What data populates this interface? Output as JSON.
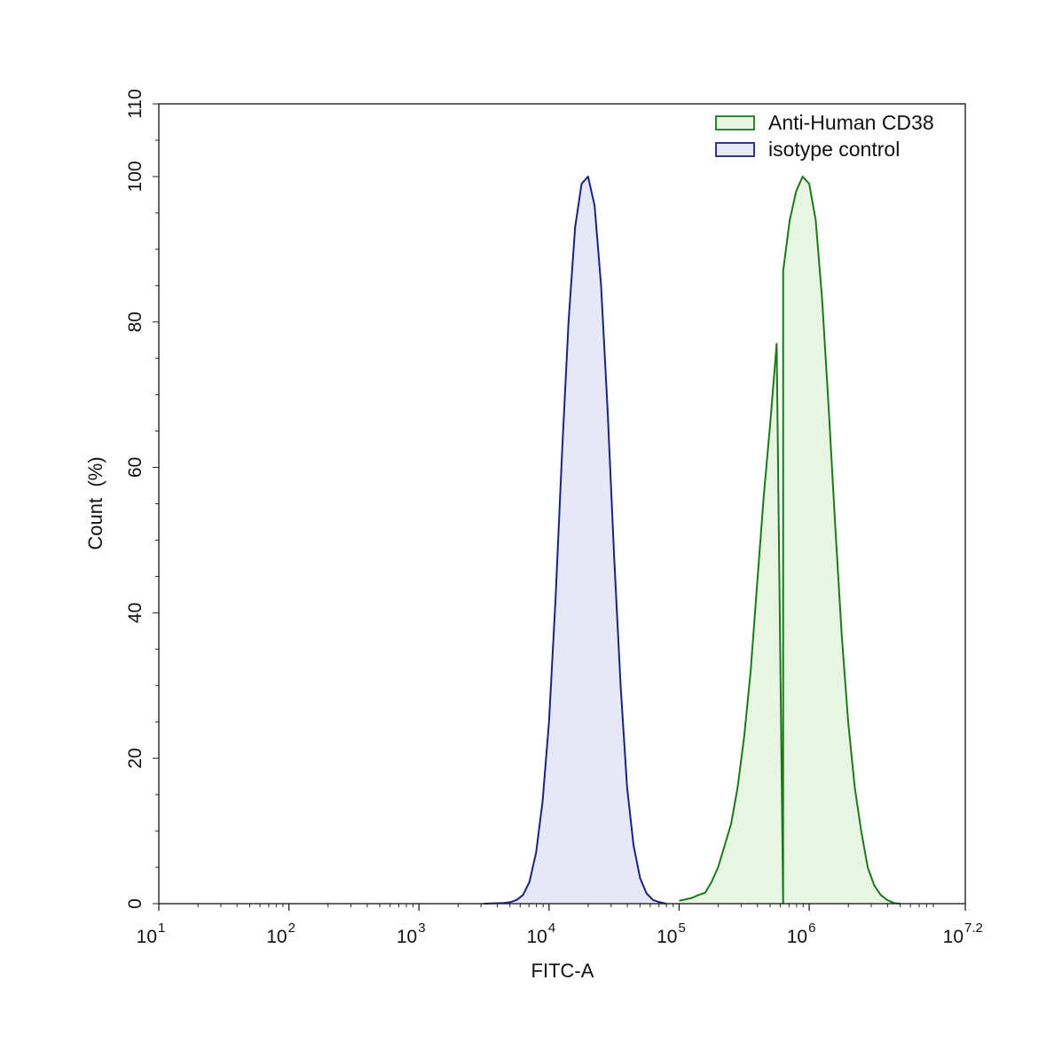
{
  "chart_data": {
    "type": "area",
    "xlabel": "FITC-A",
    "ylabel": "Count  (%)",
    "xscale": "log10",
    "xlim": [
      1,
      7.2
    ],
    "ylim": [
      0,
      110
    ],
    "x_ticks": [
      {
        "base": "10",
        "exp": "1",
        "value": 1
      },
      {
        "base": "10",
        "exp": "2",
        "value": 2
      },
      {
        "base": "10",
        "exp": "3",
        "value": 3
      },
      {
        "base": "10",
        "exp": "4",
        "value": 4
      },
      {
        "base": "10",
        "exp": "5",
        "value": 5
      },
      {
        "base": "10",
        "exp": "6",
        "value": 6
      },
      {
        "base": "10",
        "exp": "7.2",
        "value": 7.2
      }
    ],
    "y_ticks": [
      "0",
      "20",
      "40",
      "60",
      "80",
      "100",
      "110"
    ],
    "y_tick_values": [
      0,
      20,
      40,
      60,
      80,
      100,
      110
    ],
    "legend_position": "top-right",
    "grid": false,
    "series": [
      {
        "name": "Anti-Human CD38",
        "stroke": "#1a7a1a",
        "fill": "#e8f5e3",
        "points": [
          [
            5.8,
            0
          ],
          [
            5.0,
            0.4
          ],
          [
            5.05,
            0.6
          ],
          [
            5.1,
            0.8
          ],
          [
            5.15,
            1.2
          ],
          [
            5.2,
            1.5
          ],
          [
            5.25,
            3
          ],
          [
            5.3,
            5
          ],
          [
            5.35,
            8
          ],
          [
            5.4,
            11
          ],
          [
            5.45,
            16
          ],
          [
            5.5,
            23
          ],
          [
            5.55,
            32
          ],
          [
            5.6,
            44
          ],
          [
            5.65,
            56
          ],
          [
            5.7,
            66
          ],
          [
            5.75,
            77
          ],
          [
            5.8,
            87
          ],
          [
            5.85,
            94
          ],
          [
            5.9,
            98
          ],
          [
            5.95,
            100
          ],
          [
            6.0,
            99
          ],
          [
            6.05,
            94
          ],
          [
            6.1,
            83
          ],
          [
            6.15,
            68
          ],
          [
            6.2,
            52
          ],
          [
            6.25,
            37
          ],
          [
            6.3,
            25
          ],
          [
            6.35,
            16
          ],
          [
            6.4,
            10
          ],
          [
            6.45,
            5
          ],
          [
            6.5,
            2.5
          ],
          [
            6.55,
            1.2
          ],
          [
            6.6,
            0.5
          ],
          [
            6.65,
            0.1
          ],
          [
            6.7,
            0
          ]
        ]
      },
      {
        "name": "isotype control",
        "stroke": "#1a237e",
        "fill": "#e6e8f8",
        "points": [
          [
            3.5,
            0
          ],
          [
            3.65,
            0.1
          ],
          [
            3.7,
            0.2
          ],
          [
            3.75,
            0.5
          ],
          [
            3.8,
            1.2
          ],
          [
            3.85,
            3
          ],
          [
            3.9,
            7
          ],
          [
            3.95,
            14
          ],
          [
            4.0,
            25
          ],
          [
            4.05,
            42
          ],
          [
            4.1,
            62
          ],
          [
            4.15,
            80
          ],
          [
            4.2,
            93
          ],
          [
            4.25,
            99
          ],
          [
            4.3,
            100
          ],
          [
            4.35,
            96
          ],
          [
            4.4,
            85
          ],
          [
            4.45,
            68
          ],
          [
            4.5,
            48
          ],
          [
            4.55,
            30
          ],
          [
            4.6,
            16
          ],
          [
            4.65,
            8
          ],
          [
            4.7,
            3.5
          ],
          [
            4.75,
            1.4
          ],
          [
            4.8,
            0.5
          ],
          [
            4.85,
            0.2
          ],
          [
            4.9,
            0
          ]
        ]
      }
    ]
  }
}
